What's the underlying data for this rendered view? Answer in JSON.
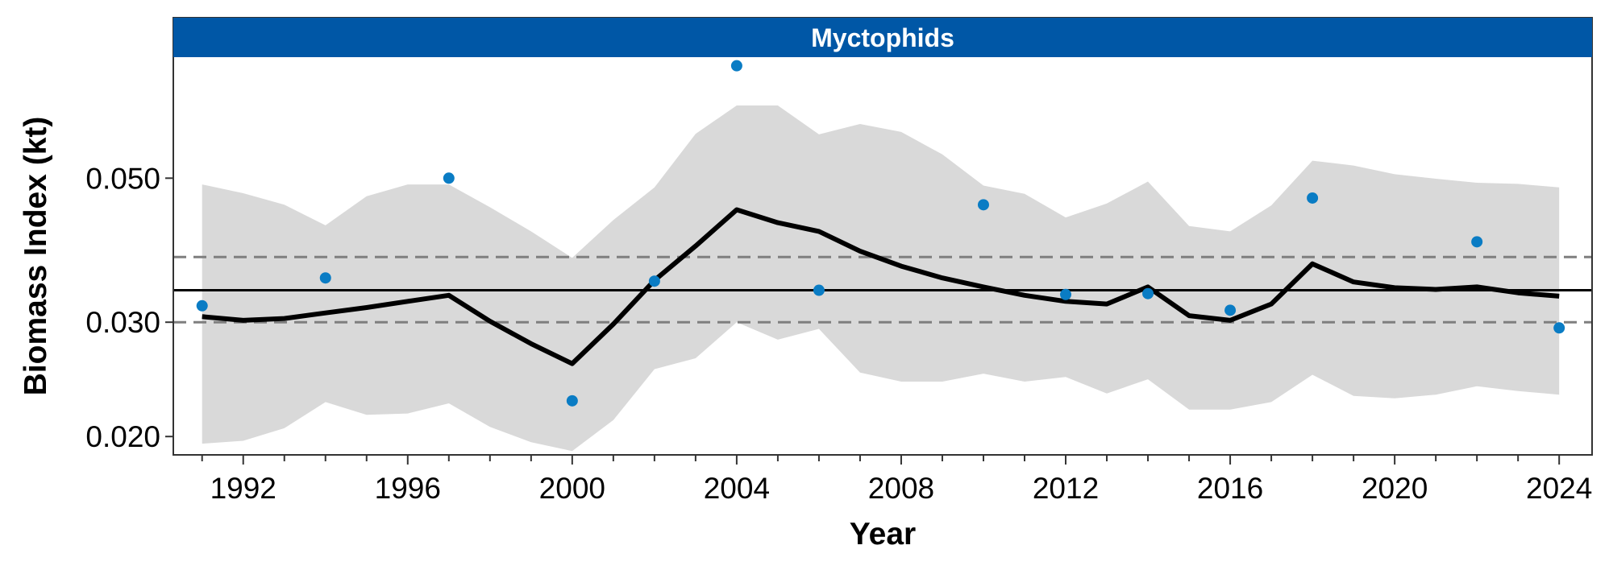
{
  "chart_data": {
    "type": "line",
    "facet_label": "Myctophids",
    "xlabel": "Year",
    "ylabel": "Biomass Index (kt)",
    "y_scale": "log",
    "xlim": [
      1990.3,
      2024.8
    ],
    "ylim": [
      0.01874,
      0.0768
    ],
    "x_ticks": [
      1992,
      1996,
      2000,
      2004,
      2008,
      2012,
      2016,
      2020,
      2024
    ],
    "x_tick_labels": [
      "1992",
      "1996",
      "2000",
      "2004",
      "2008",
      "2012",
      "2016",
      "2020",
      "2024"
    ],
    "x_minor_ticks": [
      1991,
      1993,
      1994,
      1995,
      1997,
      1998,
      1999,
      2001,
      2002,
      2003,
      2005,
      2006,
      2007,
      2009,
      2010,
      2011,
      2013,
      2014,
      2015,
      2017,
      2018,
      2019,
      2021,
      2022,
      2023
    ],
    "y_ticks": [
      0.02,
      0.03,
      0.05
    ],
    "y_tick_labels": [
      "0.020",
      "0.030",
      "0.050"
    ],
    "reference_lines": {
      "mean": 0.0336,
      "lower": 0.03,
      "upper": 0.0378
    },
    "trend": {
      "x": [
        1991,
        1992,
        1993,
        1994,
        1995,
        1996,
        1997,
        1998,
        1999,
        2000,
        2001,
        2002,
        2003,
        2004,
        2005,
        2006,
        2007,
        2008,
        2009,
        2010,
        2011,
        2012,
        2013,
        2014,
        2015,
        2016,
        2017,
        2018,
        2019,
        2020,
        2021,
        2022,
        2023,
        2024
      ],
      "y": [
        0.0306,
        0.0302,
        0.0304,
        0.031,
        0.0316,
        0.0323,
        0.033,
        0.0301,
        0.0278,
        0.0259,
        0.0298,
        0.0348,
        0.0393,
        0.0447,
        0.0427,
        0.0414,
        0.0386,
        0.0366,
        0.0351,
        0.034,
        0.033,
        0.0323,
        0.032,
        0.034,
        0.0307,
        0.0302,
        0.032,
        0.0369,
        0.0346,
        0.0339,
        0.0337,
        0.034,
        0.0333,
        0.0329
      ]
    },
    "ribbon": {
      "x": [
        1991,
        1992,
        1993,
        1994,
        1995,
        1996,
        1997,
        1998,
        1999,
        2000,
        2001,
        2002,
        2003,
        2004,
        2005,
        2006,
        2007,
        2008,
        2009,
        2010,
        2011,
        2012,
        2013,
        2014,
        2015,
        2016,
        2017,
        2018,
        2019,
        2020,
        2021,
        2022,
        2023,
        2024
      ],
      "lower": [
        0.0195,
        0.0197,
        0.0206,
        0.0226,
        0.0216,
        0.0217,
        0.0225,
        0.0207,
        0.0196,
        0.019,
        0.0212,
        0.0254,
        0.0264,
        0.03,
        0.0282,
        0.0293,
        0.0251,
        0.0243,
        0.0243,
        0.025,
        0.0243,
        0.0247,
        0.0233,
        0.0245,
        0.022,
        0.022,
        0.0226,
        0.0249,
        0.0231,
        0.0229,
        0.0232,
        0.0239,
        0.0235,
        0.0232
      ],
      "upper": [
        0.0489,
        0.0474,
        0.0455,
        0.0423,
        0.0469,
        0.0489,
        0.0489,
        0.0451,
        0.0414,
        0.0377,
        0.0431,
        0.0484,
        0.0585,
        0.0647,
        0.0647,
        0.0584,
        0.0606,
        0.0589,
        0.0544,
        0.0487,
        0.0473,
        0.0435,
        0.0457,
        0.0494,
        0.0422,
        0.0414,
        0.0454,
        0.0532,
        0.0523,
        0.0507,
        0.0499,
        0.0492,
        0.049,
        0.0484
      ]
    },
    "observations": {
      "x": [
        1991,
        1994,
        1997,
        2000,
        2002,
        2004,
        2006,
        2010,
        2012,
        2014,
        2016,
        2018,
        2022,
        2024
      ],
      "y": [
        0.0318,
        0.0351,
        0.05,
        0.0227,
        0.0347,
        0.0745,
        0.0336,
        0.0455,
        0.0331,
        0.0332,
        0.0313,
        0.0466,
        0.0399,
        0.0294
      ]
    },
    "colors": {
      "strip_fill": "#0057A6",
      "strip_text": "#FFFFFF",
      "ribbon": "#D9D9D9",
      "trend": "#000000",
      "points": "#0A7CC4",
      "mean_line": "#000000",
      "limit_lines": "#7F7F7F",
      "panel_border": "#333333"
    }
  }
}
